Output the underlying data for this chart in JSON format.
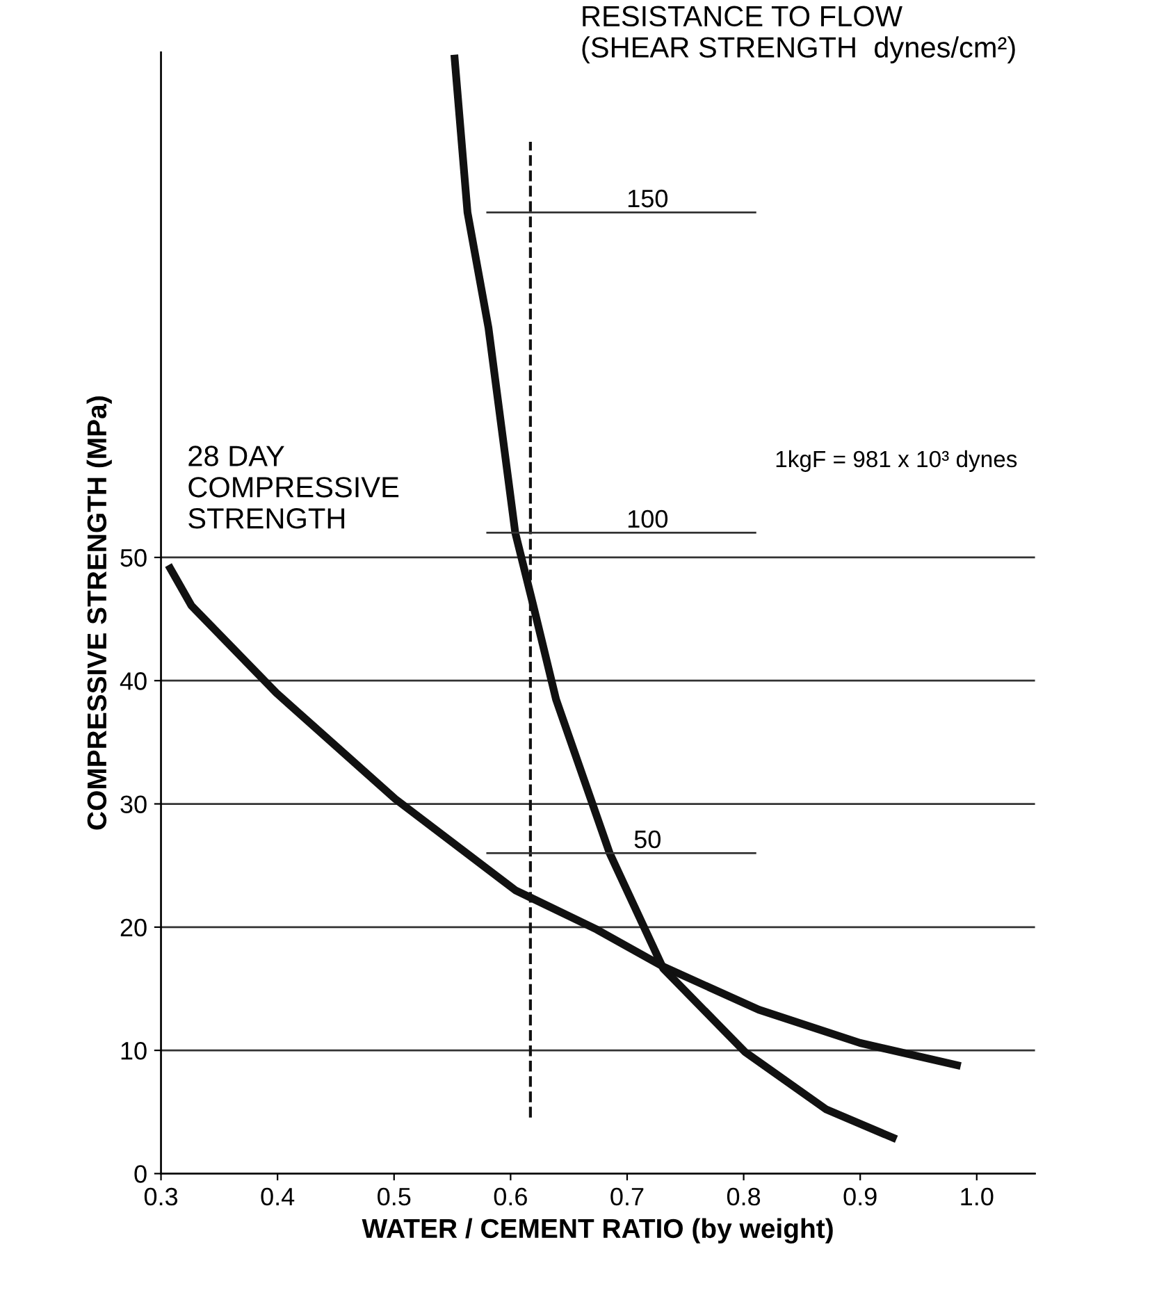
{
  "chart_data": {
    "type": "line",
    "xlabel": "WATER / CEMENT RATIO (by weight)",
    "ylabel": "COMPRESSIVE STRENGTH (MPa)",
    "y2label": "RESISTANCE TO FLOW\n(SHEAR STRENGTH  dynes/cm²)",
    "xlim": [
      0.3,
      1.05
    ],
    "xticks": [
      {
        "value": 0.3,
        "label": "0.3"
      },
      {
        "value": 0.4,
        "label": "0.4"
      },
      {
        "value": 0.5,
        "label": "0.5"
      },
      {
        "value": 0.6,
        "label": "0.6"
      },
      {
        "value": 0.7,
        "label": "0.7"
      },
      {
        "value": 0.8,
        "label": "0.8"
      },
      {
        "value": 0.9,
        "label": "0.9"
      },
      {
        "value": 1.0,
        "label": "1.0"
      }
    ],
    "ylim": [
      0,
      91
    ],
    "yticks": [
      0,
      10,
      20,
      30,
      40,
      50
    ],
    "y2lim": [
      0,
      175
    ],
    "grid": "y",
    "series": [
      {
        "color": "#111111",
        "x": [
          0.308,
          0.326,
          0.399,
          0.501,
          0.604,
          0.674,
          0.731,
          0.813,
          0.9,
          0.983
        ],
        "values": [
          49.1,
          46.1,
          39.0,
          30.4,
          23.0,
          19.8,
          16.8,
          13.3,
          10.6,
          8.8
        ]
      },
      {
        "color": "#111111",
        "axis": "y2",
        "x": [
          0.552,
          0.563,
          0.581,
          0.604,
          0.619,
          0.639,
          0.685,
          0.731,
          0.801,
          0.871,
          0.928
        ],
        "values": [
          174,
          150,
          132,
          100,
          89,
          74,
          50,
          32,
          19,
          10,
          5.6
        ]
      }
    ],
    "ref_lines": [
      {
        "axis": "x",
        "value": 0.617,
        "line_style": "dashed",
        "color": "#111111"
      },
      {
        "axis": "y2",
        "value": 150,
        "label": "150",
        "color": "#333333"
      },
      {
        "axis": "y2",
        "value": 100,
        "label": "100",
        "color": "#333333"
      },
      {
        "axis": "y2",
        "value": 50,
        "label": "50",
        "color": "#333333"
      }
    ],
    "annotations": [
      "28 DAY\nCOMPRESSIVE\nSTRENGTH",
      "1kgF = 981 x 10³ dynes"
    ],
    "marker": "none",
    "line_style": "solid",
    "legend": false
  }
}
